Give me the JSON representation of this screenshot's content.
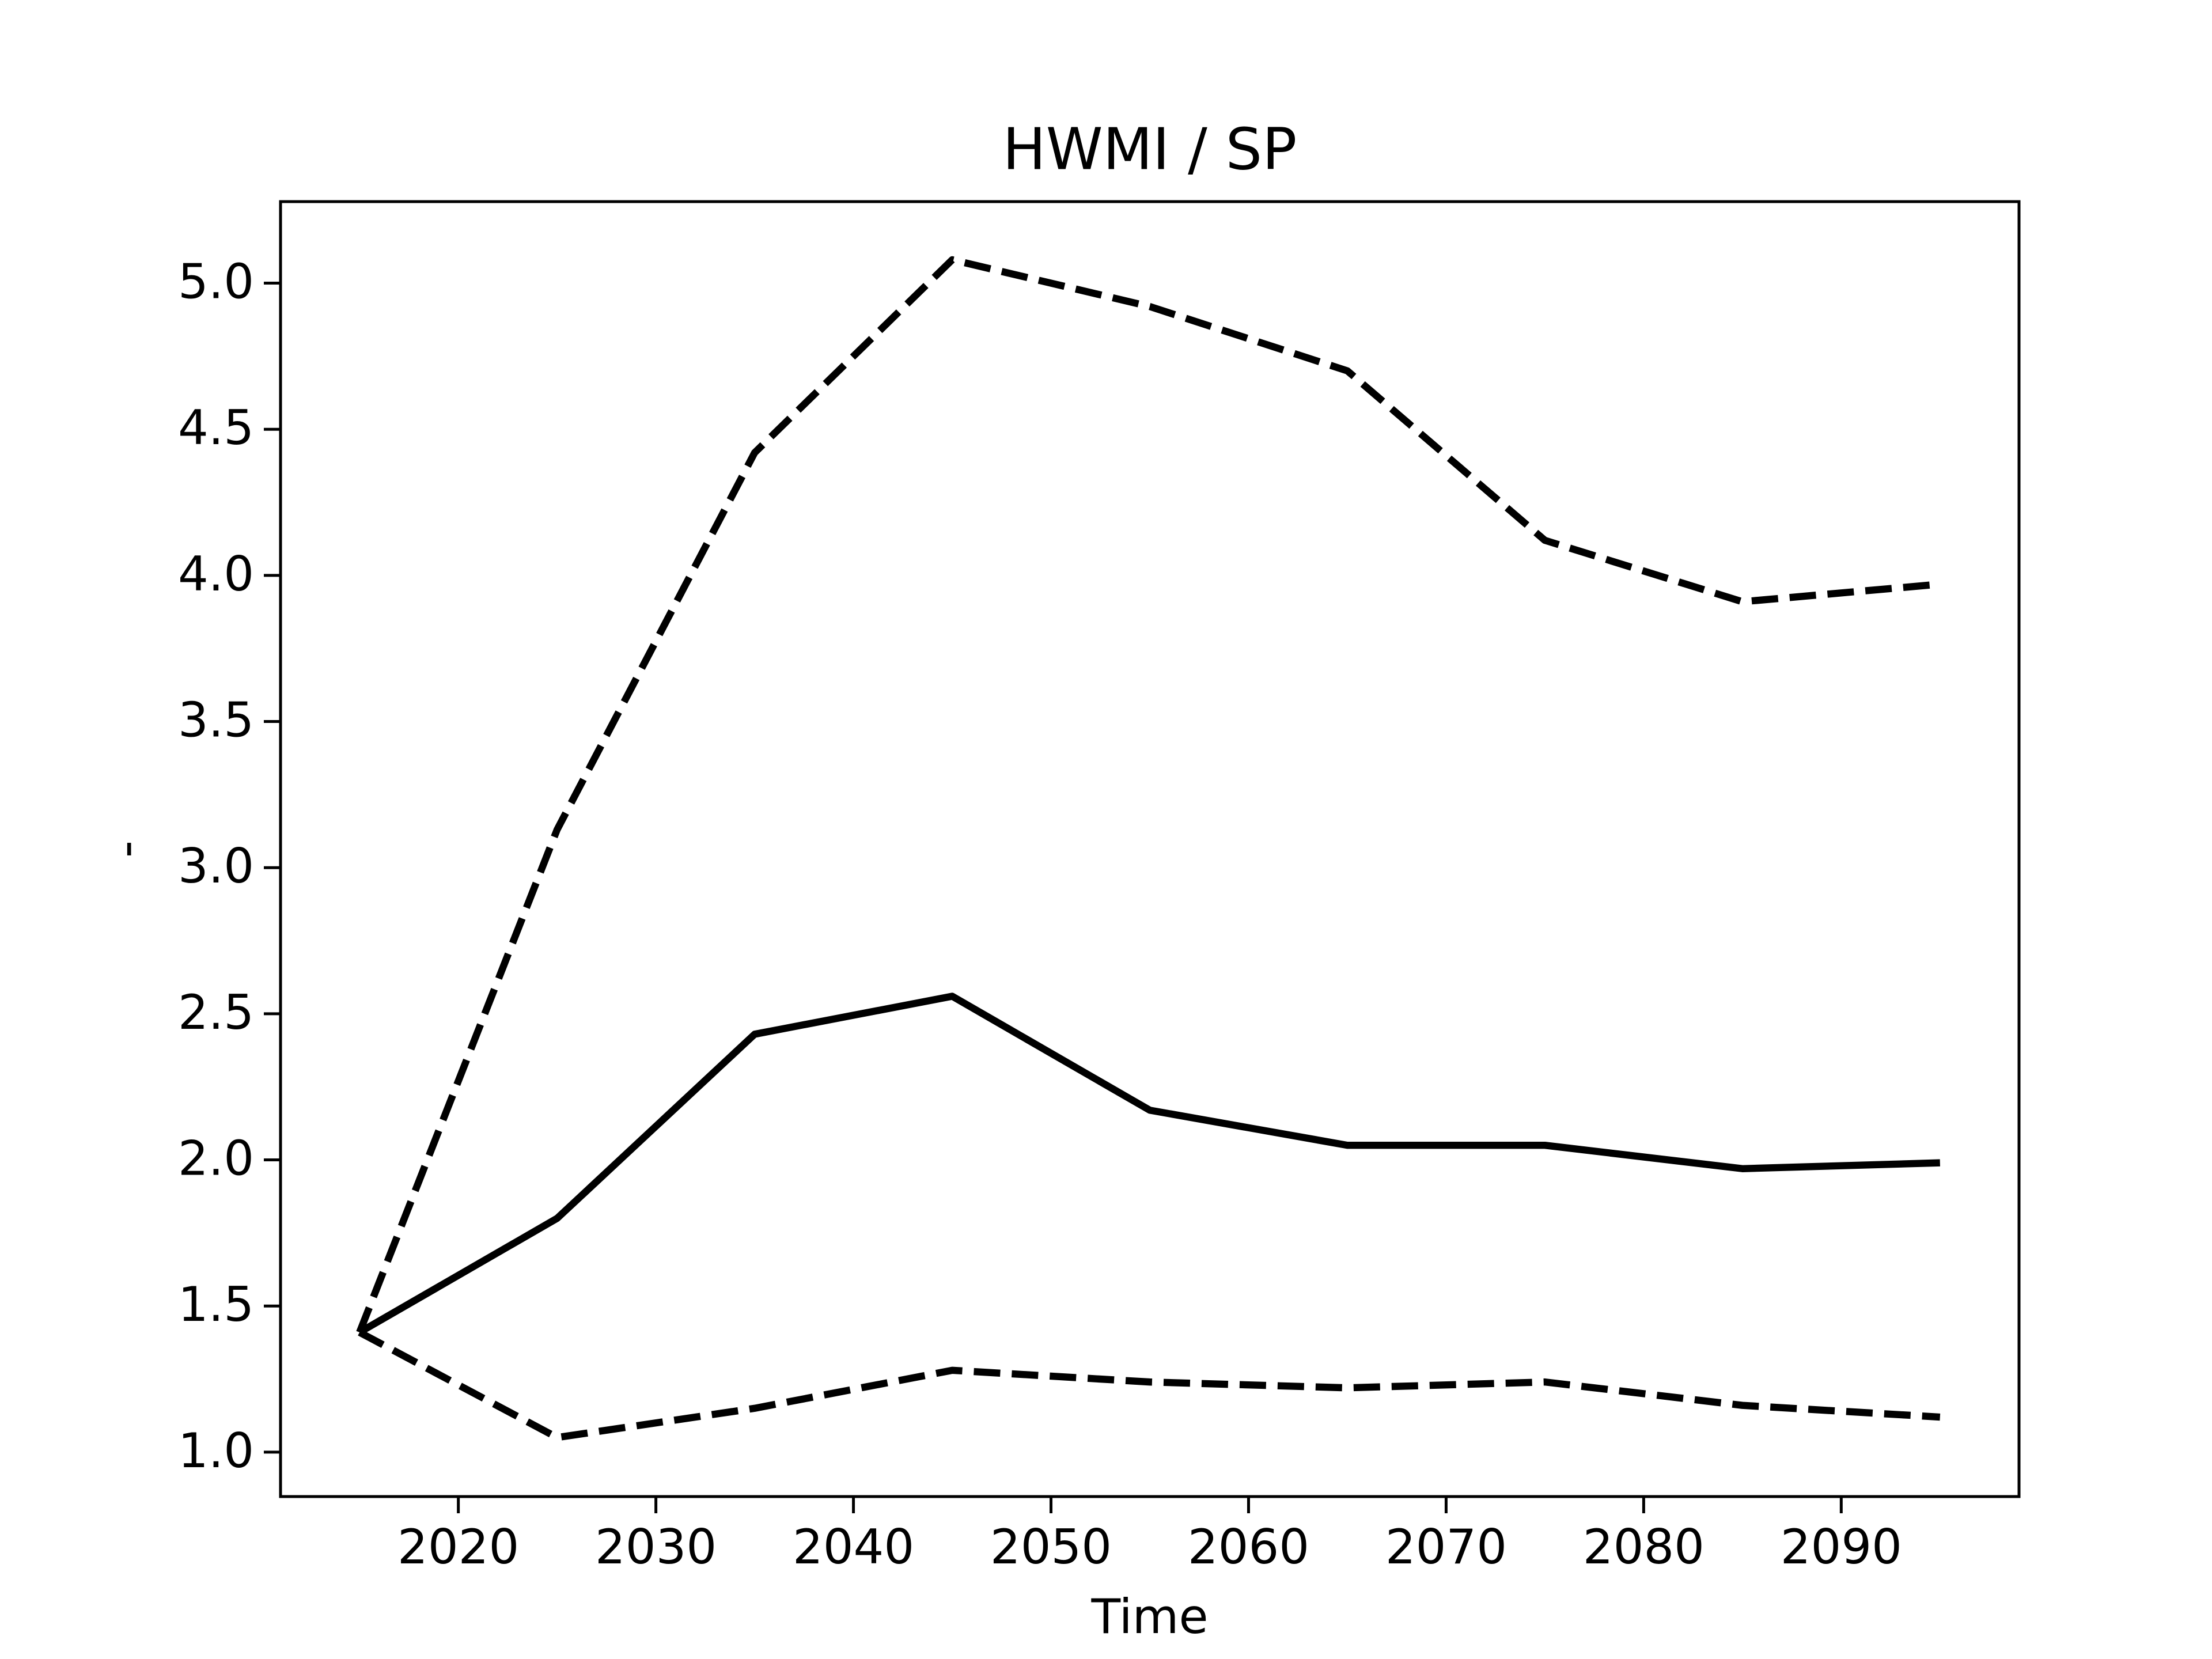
{
  "chart_data": {
    "type": "line",
    "title": "HWMI / SP",
    "x_label": "Time",
    "y_label": "-",
    "x": [
      2015,
      2025,
      2035,
      2045,
      2055,
      2065,
      2075,
      2085,
      2095
    ],
    "series": [
      {
        "color": "#000000",
        "linestyle": "solid",
        "values": [
          1.41,
          1.8,
          2.43,
          2.56,
          2.17,
          2.05,
          2.05,
          1.97,
          1.99
        ]
      },
      {
        "color": "#000000",
        "linestyle": "dashed",
        "values": [
          1.41,
          3.13,
          4.42,
          5.08,
          4.92,
          4.7,
          4.12,
          3.91,
          3.97
        ]
      },
      {
        "color": "#000000",
        "linestyle": "dashed",
        "values": [
          1.41,
          1.05,
          1.15,
          1.28,
          1.24,
          1.22,
          1.24,
          1.16,
          1.12
        ]
      }
    ],
    "xlim": [
      2011,
      2099
    ],
    "ylim": [
      0.848,
      5.279
    ],
    "xticks": [
      2020,
      2030,
      2040,
      2050,
      2060,
      2070,
      2080,
      2090
    ],
    "yticks": [
      {
        "value": 1.0,
        "label": "1.0"
      },
      1.5,
      {
        "value": 2.0,
        "label": "2.0"
      },
      2.5,
      {
        "value": 3.0,
        "label": "3.0"
      },
      3.5,
      {
        "value": 4.0,
        "label": "4.0"
      },
      4.5,
      {
        "value": 5.0,
        "label": "5.0"
      }
    ],
    "grid": false
  }
}
